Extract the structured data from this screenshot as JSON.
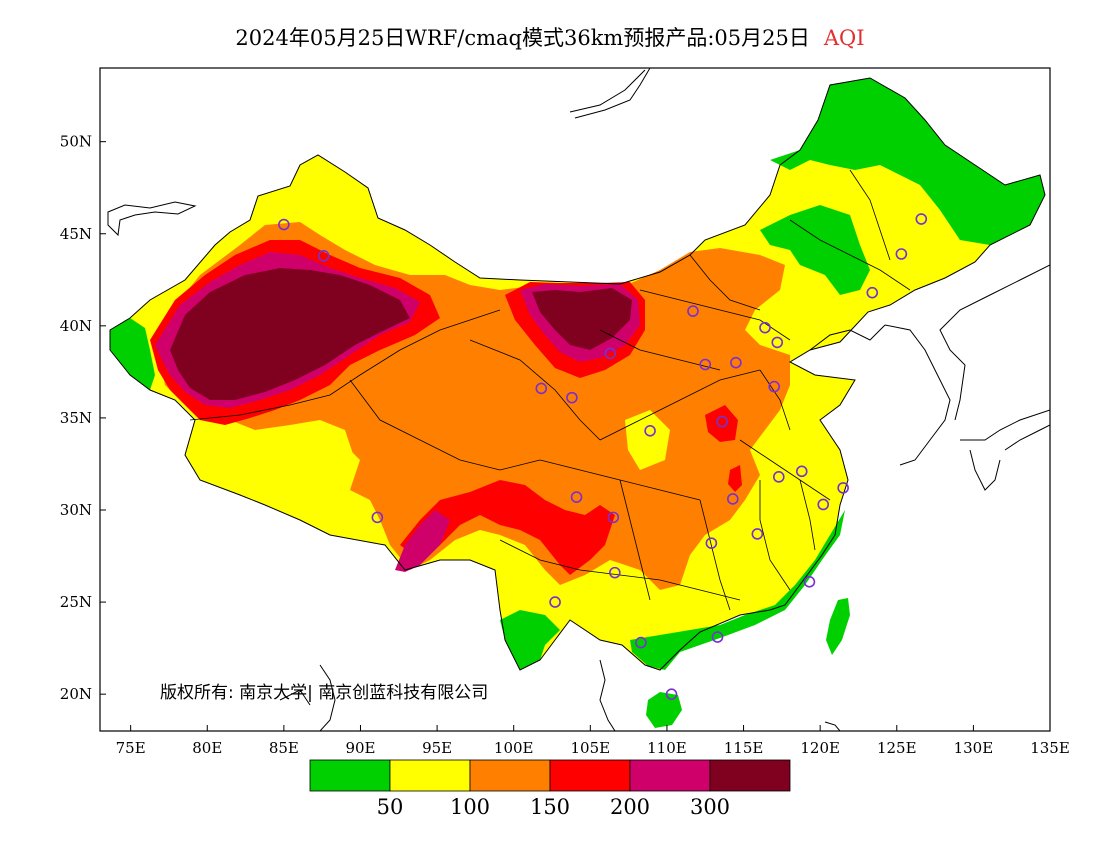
{
  "title": {
    "main": "2024年05月25日WRF/cmaq模式36km预报产品:05月25日",
    "variable": "AQI",
    "variable_color": "#e03030"
  },
  "axes": {
    "lon_labels": [
      "75E",
      "80E",
      "85E",
      "90E",
      "95E",
      "100E",
      "105E",
      "110E",
      "115E",
      "120E",
      "125E",
      "130E",
      "135E"
    ],
    "lon_values": [
      75,
      80,
      85,
      90,
      95,
      100,
      105,
      110,
      115,
      120,
      125,
      130,
      135
    ],
    "lat_labels": [
      "20N",
      "25N",
      "30N",
      "35N",
      "40N",
      "45N",
      "50N"
    ],
    "lat_values": [
      20,
      25,
      30,
      35,
      40,
      45,
      50
    ],
    "lon_range": [
      73,
      135
    ],
    "lat_range": [
      18,
      54
    ]
  },
  "legend": {
    "colors": [
      "#00d000",
      "#ffff00",
      "#ff8000",
      "#ff0000",
      "#d0006a",
      "#800020"
    ],
    "labels": [
      "50",
      "100",
      "150",
      "200",
      "300"
    ]
  },
  "copyright": "版权所有: 南京大学| 南京创蓝科技有限公司",
  "stations": [
    [
      85.0,
      45.5
    ],
    [
      87.6,
      43.8
    ],
    [
      91.1,
      29.6
    ],
    [
      101.8,
      36.6
    ],
    [
      103.8,
      36.1
    ],
    [
      104.1,
      30.7
    ],
    [
      106.6,
      26.6
    ],
    [
      106.5,
      29.6
    ],
    [
      102.7,
      25.0
    ],
    [
      108.3,
      22.8
    ],
    [
      110.3,
      20.0
    ],
    [
      113.3,
      23.1
    ],
    [
      112.9,
      28.2
    ],
    [
      114.3,
      30.6
    ],
    [
      115.9,
      28.7
    ],
    [
      117.3,
      31.8
    ],
    [
      118.8,
      32.1
    ],
    [
      120.2,
      30.3
    ],
    [
      121.5,
      31.2
    ],
    [
      119.3,
      26.1
    ],
    [
      113.6,
      34.8
    ],
    [
      117.0,
      36.7
    ],
    [
      114.5,
      38.0
    ],
    [
      112.5,
      37.9
    ],
    [
      111.7,
      40.8
    ],
    [
      116.4,
      39.9
    ],
    [
      117.2,
      39.1
    ],
    [
      123.4,
      41.8
    ],
    [
      125.3,
      43.9
    ],
    [
      126.6,
      45.8
    ],
    [
      108.9,
      34.3
    ],
    [
      106.3,
      38.5
    ]
  ]
}
